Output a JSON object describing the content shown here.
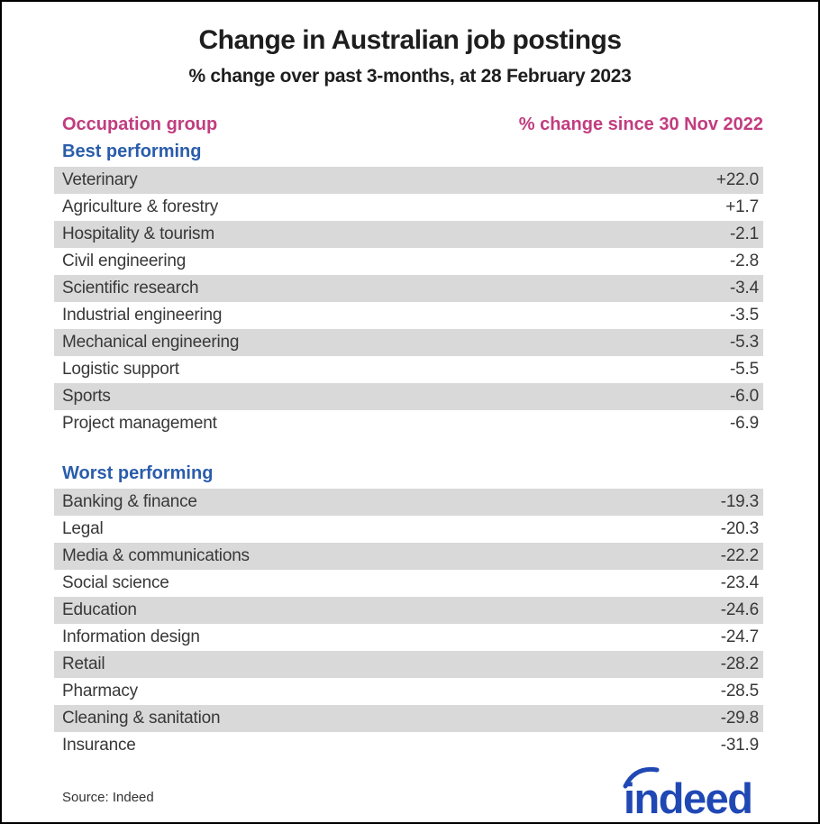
{
  "page": {
    "title": "Change in Australian job postings",
    "subtitle": "% change over past 3-months, at 28 February 2023",
    "source_note": "Source: Indeed",
    "logo_text": "indeed"
  },
  "columns": {
    "occupation": "Occupation group",
    "change": "% change since 30 Nov 2022"
  },
  "sections": [
    {
      "label": "Best performing",
      "rows": [
        {
          "label": "Veterinary",
          "value": "+22.0"
        },
        {
          "label": "Agriculture & forestry",
          "value": "+1.7"
        },
        {
          "label": "Hospitality & tourism",
          "value": "-2.1"
        },
        {
          "label": "Civil engineering",
          "value": "-2.8"
        },
        {
          "label": "Scientific research",
          "value": "-3.4"
        },
        {
          "label": "Industrial engineering",
          "value": "-3.5"
        },
        {
          "label": "Mechanical engineering",
          "value": "-5.3"
        },
        {
          "label": "Logistic support",
          "value": "-5.5"
        },
        {
          "label": "Sports",
          "value": "-6.0"
        },
        {
          "label": "Project management",
          "value": "-6.9"
        }
      ]
    },
    {
      "label": "Worst performing",
      "rows": [
        {
          "label": "Banking & finance",
          "value": "-19.3"
        },
        {
          "label": "Legal",
          "value": "-20.3"
        },
        {
          "label": "Media & communications",
          "value": "-22.2"
        },
        {
          "label": "Social science",
          "value": "-23.4"
        },
        {
          "label": "Education",
          "value": "-24.6"
        },
        {
          "label": "Information design",
          "value": "-24.7"
        },
        {
          "label": "Retail",
          "value": "-28.2"
        },
        {
          "label": "Pharmacy",
          "value": "-28.5"
        },
        {
          "label": "Cleaning & sanitation",
          "value": "-29.8"
        },
        {
          "label": "Insurance",
          "value": "-31.9"
        }
      ]
    }
  ],
  "colors": {
    "accent_pink": "#c13d7f",
    "accent_blue": "#2a5dab",
    "row_stripe": "#d9d9d9",
    "logo_blue": "#2048b5",
    "text_dark": "#1e1e1e"
  },
  "chart_data": {
    "type": "table",
    "title": "Change in Australian job postings",
    "subtitle": "% change over past 3-months, at 28 February 2023",
    "columns": [
      "Occupation group",
      "% change since 30 Nov 2022"
    ],
    "series": [
      {
        "name": "Best performing",
        "categories": [
          "Veterinary",
          "Agriculture & forestry",
          "Hospitality & tourism",
          "Civil engineering",
          "Scientific research",
          "Industrial engineering",
          "Mechanical engineering",
          "Logistic support",
          "Sports",
          "Project management"
        ],
        "values": [
          22.0,
          1.7,
          -2.1,
          -2.8,
          -3.4,
          -3.5,
          -5.3,
          -5.5,
          -6.0,
          -6.9
        ]
      },
      {
        "name": "Worst performing",
        "categories": [
          "Banking & finance",
          "Legal",
          "Media & communications",
          "Social science",
          "Education",
          "Information design",
          "Retail",
          "Pharmacy",
          "Cleaning & sanitation",
          "Insurance"
        ],
        "values": [
          -19.3,
          -20.3,
          -22.2,
          -23.4,
          -24.6,
          -24.7,
          -28.2,
          -28.5,
          -29.8,
          -31.9
        ]
      }
    ],
    "source": "Indeed",
    "legend_position": "none",
    "grid": false
  }
}
